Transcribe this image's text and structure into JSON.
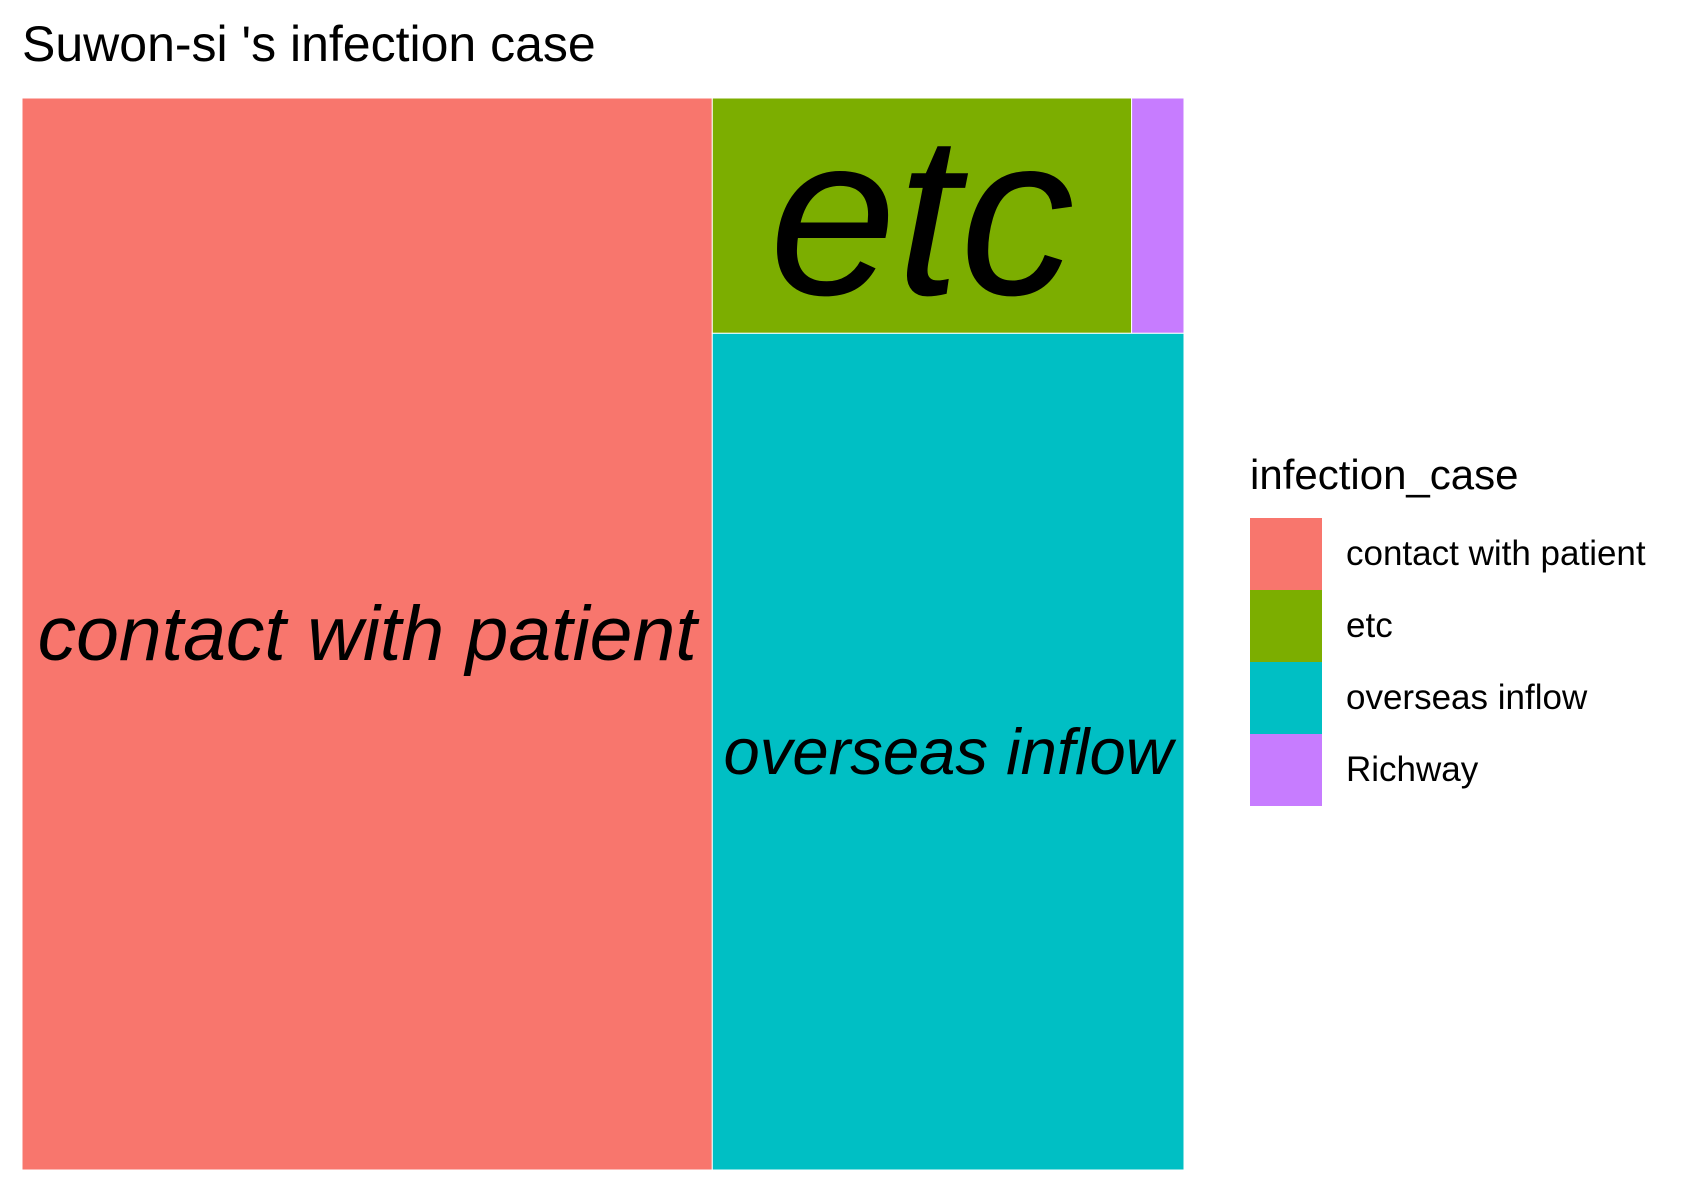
{
  "title": "Suwon-si 's infection case",
  "legend": {
    "title": "infection_case",
    "items": [
      {
        "label": "contact with patient",
        "color": "#F8766D"
      },
      {
        "label": "etc",
        "color": "#7CAE00"
      },
      {
        "label": "overseas inflow",
        "color": "#00BFC4"
      },
      {
        "label": "Richway",
        "color": "#C77CFF"
      }
    ]
  },
  "chart_data": {
    "type": "treemap",
    "title": "Suwon-si 's infection case",
    "legend_title": "infection_case",
    "legend_position": "right",
    "categories": [
      "contact with patient",
      "etc",
      "overseas inflow",
      "Richway"
    ],
    "values": [
      15,
      2,
      8,
      0.25
    ],
    "colors": [
      "#F8766D",
      "#7CAE00",
      "#00BFC4",
      "#C77CFF"
    ],
    "labels_shown": [
      "contact with patient",
      "etc",
      "overseas inflow"
    ]
  }
}
